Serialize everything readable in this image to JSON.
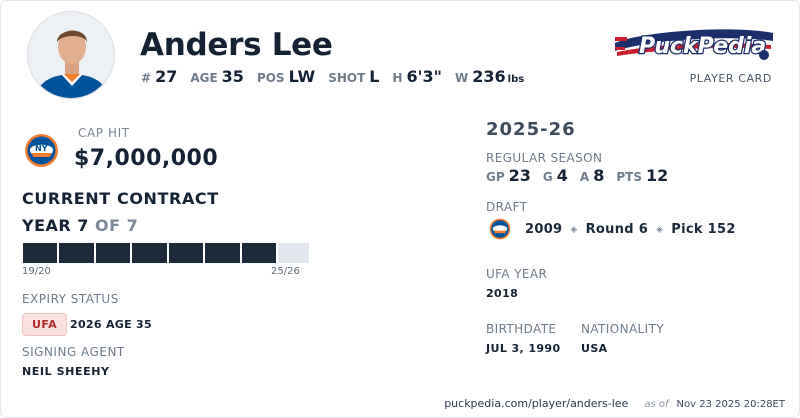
{
  "player": {
    "name": "Anders Lee",
    "number_label": "#",
    "number": "27",
    "age_label": "AGE",
    "age": "35",
    "pos_label": "POS",
    "pos": "LW",
    "shot_label": "SHOT",
    "shot": "L",
    "height_label": "H",
    "height": "6'3\"",
    "weight_label": "W",
    "weight": "236",
    "weight_unit": "lbs"
  },
  "brand": {
    "logo_text": "PuckPedia",
    "card_label": "PLAYER CARD"
  },
  "contract": {
    "cap_hit_label": "CAP HIT",
    "cap_hit": "$7,000,000",
    "title": "CURRENT CONTRACT",
    "year_label": "YEAR 7",
    "year_of": "OF 7",
    "progress_fraction": 0.89,
    "bar_start": "19/20",
    "bar_end": "25/26",
    "expiry_label": "EXPIRY STATUS",
    "expiry_badge": "UFA",
    "expiry_text": "2026 AGE 35",
    "agent_label": "SIGNING AGENT",
    "agent": "NEIL SHEEHY"
  },
  "season": {
    "title": "2025-26",
    "regular_season_label": "REGULAR SEASON",
    "gp_label": "GP",
    "gp": "23",
    "g_label": "G",
    "g": "4",
    "a_label": "A",
    "a": "8",
    "pts_label": "PTS",
    "pts": "12"
  },
  "draft": {
    "label": "DRAFT",
    "year": "2009",
    "round": "Round 6",
    "pick": "Pick 152"
  },
  "ufa": {
    "label": "UFA YEAR",
    "value": "2018"
  },
  "bio": {
    "birthdate_label": "BIRTHDATE",
    "birthdate": "JUL 3, 1990",
    "nationality_label": "NATIONALITY",
    "nationality": "USA"
  },
  "footer": {
    "url": "puckpedia.com/player/anders-lee",
    "as_of": "as of",
    "timestamp": "Nov 23 2025 20:28ET"
  },
  "icons": {
    "team_logo": "islanders-logo-icon",
    "separator": "diamond-separator-icon"
  },
  "colors": {
    "team_blue": "#00539b",
    "team_orange": "#f47d30",
    "bar_fill": "#1d2a3a",
    "ufa_badge_bg": "#fbe0e0",
    "ufa_badge_text": "#b02a2a"
  }
}
